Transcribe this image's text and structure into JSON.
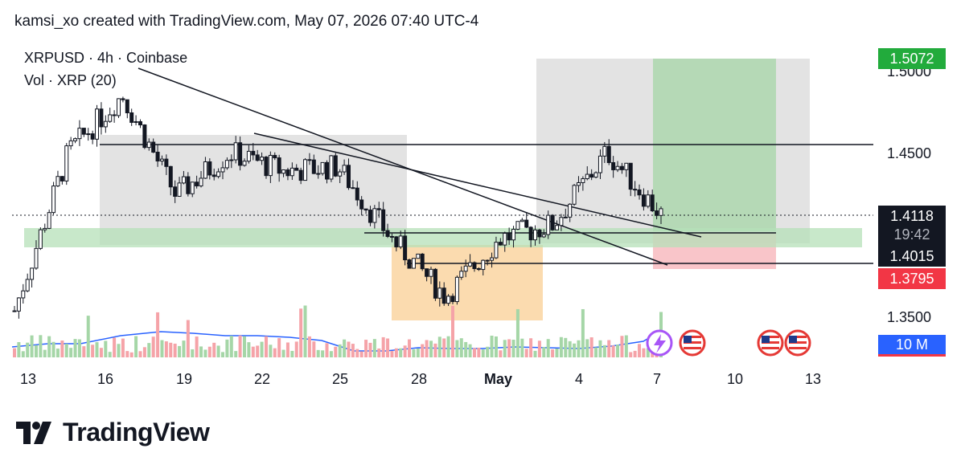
{
  "header": {
    "caption": "kamsi_xo created with TradingView.com, May 07, 2026 07:40 UTC-4"
  },
  "legend": {
    "symbol": "XRPUSD · 4h · Coinbase",
    "volume": "Vol · XRP (20)"
  },
  "price_axis": {
    "ticks": [
      "1.5000",
      "1.4500",
      "1.3500"
    ],
    "badges": {
      "target": "1.5072",
      "current": "1.4118",
      "countdown": "19:42",
      "level": "1.4015",
      "stop": "1.3795",
      "volume": "10 M"
    }
  },
  "time_axis": {
    "ticks": [
      "13",
      "16",
      "19",
      "22",
      "25",
      "28",
      "May",
      "4",
      "7",
      "10",
      "13"
    ]
  },
  "brand": {
    "name": "TradingView"
  },
  "colors": {
    "up": "#26a69a",
    "down": "#131722",
    "target_bg": "#22ab3c",
    "stop_bg": "#f23645",
    "volume_badge": "#2962ff"
  },
  "icons": [
    "lightning-event-icon",
    "us-flag-icon",
    "us-flag-icon",
    "us-flag-icon"
  ],
  "chart_data": {
    "type": "candlestick",
    "title": "XRPUSD · 4h · Coinbase",
    "xlabel": "",
    "ylabel": "",
    "ylim": [
      1.335,
      1.52
    ],
    "x": [
      "Apr 13",
      "Apr 16",
      "Apr 17",
      "Apr 19",
      "Apr 22",
      "Apr 25",
      "Apr 27",
      "Apr 28",
      "Apr 29",
      "May 1",
      "May 4",
      "May 6",
      "May 7"
    ],
    "close": [
      1.345,
      1.455,
      1.495,
      1.425,
      1.455,
      1.442,
      1.445,
      1.395,
      1.355,
      1.395,
      1.405,
      1.455,
      1.4118
    ],
    "levels": {
      "resistance": 1.4535,
      "support": 1.4015,
      "target": 1.5072,
      "stop": 1.3795
    },
    "volume_series": "Vol · XRP (20)",
    "volume_ma_unit": "10 M"
  }
}
